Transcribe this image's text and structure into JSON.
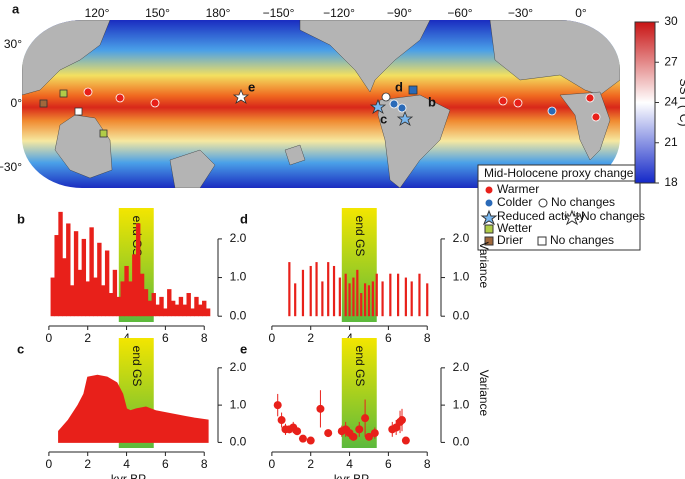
{
  "map": {
    "panel_label": "a",
    "lon_labels": [
      "120°",
      "150°",
      "180°",
      "−150°",
      "−120°",
      "−90°",
      "−60°",
      "−30°",
      "0°"
    ],
    "lat_labels": [
      "30°",
      "0°",
      "−30°"
    ],
    "site_labels": [
      "b",
      "c",
      "d",
      "e"
    ]
  },
  "legend": {
    "title": "Mid-Holocene proxy change",
    "items": [
      "Warmer",
      "Colder",
      "No changes",
      "Reduced activity",
      "No changes",
      "Wetter",
      "Drier",
      "No changes"
    ]
  },
  "chart_data": [
    {
      "type": "colorbar",
      "ylabel": "SST (°C)",
      "ylim": [
        18,
        30
      ],
      "yticks": [
        18,
        21,
        24,
        27,
        30
      ],
      "colors": [
        "#1428c8",
        "#ffffff",
        "#c81414"
      ]
    },
    {
      "type": "bar",
      "panel_label": "b",
      "color": "#e8201a",
      "x": [
        0.2,
        0.4,
        0.6,
        0.8,
        1.0,
        1.2,
        1.4,
        1.6,
        1.8,
        2.0,
        2.2,
        2.4,
        2.6,
        2.8,
        3.0,
        3.2,
        3.4,
        3.6,
        3.8,
        4.0,
        4.2,
        4.4,
        4.6,
        4.8,
        5.0,
        5.2,
        5.4,
        5.6,
        5.8,
        6.0,
        6.2,
        6.4,
        6.6,
        6.8,
        7.0,
        7.2,
        7.4,
        7.6,
        7.8,
        8.0,
        8.2
      ],
      "values": [
        1.0,
        2.1,
        2.7,
        1.5,
        2.4,
        0.8,
        2.2,
        1.2,
        2.0,
        0.9,
        2.3,
        1.0,
        1.9,
        0.8,
        1.7,
        0.6,
        1.2,
        0.5,
        0.9,
        1.3,
        0.9,
        1.6,
        2.4,
        1.1,
        0.7,
        0.4,
        0.6,
        0.3,
        0.5,
        0.2,
        0.7,
        0.4,
        0.3,
        0.5,
        0.3,
        0.6,
        0.2,
        0.5,
        0.3,
        0.4,
        0.2
      ],
      "shade": {
        "from": 3.6,
        "to": 5.4,
        "label": "end GS"
      },
      "xlim": [
        -0.2,
        8.4
      ],
      "xticks": [
        0,
        2,
        4,
        6,
        8
      ],
      "ylim": [
        -0.15,
        2.8
      ],
      "yticks": [
        {
          "value": 0,
          "label": "0.0"
        },
        {
          "value": 1,
          "label": "1.0"
        },
        {
          "value": 2,
          "label": "2.0"
        }
      ]
    },
    {
      "type": "area",
      "panel_label": "c",
      "color": "#e8201a",
      "xlabel": "kyr BP",
      "x": [
        0.5,
        1.0,
        1.5,
        1.8,
        2.0,
        2.5,
        3.0,
        3.5,
        3.8,
        4.0,
        4.2,
        4.5,
        5.0,
        5.5,
        6.0,
        6.5,
        7.0,
        7.5,
        8.2
      ],
      "values": [
        0.3,
        0.6,
        1.0,
        1.3,
        1.75,
        1.8,
        1.75,
        1.6,
        1.3,
        0.9,
        0.85,
        0.9,
        0.95,
        0.85,
        0.8,
        0.75,
        0.7,
        0.65,
        0.6
      ],
      "shade": {
        "from": 3.6,
        "to": 5.4,
        "label": "end GS"
      },
      "xlim": [
        -0.2,
        8.4
      ],
      "xticks": [
        0,
        2,
        4,
        6,
        8
      ],
      "ylim": [
        -0.15,
        2.8
      ],
      "yticks": [
        {
          "value": 0,
          "label": "0.0"
        },
        {
          "value": 1,
          "label": "1.0"
        },
        {
          "value": 2,
          "label": "2.0"
        }
      ]
    },
    {
      "type": "bar",
      "panel_label": "d",
      "color": "#e8201a",
      "ylabel": "Variance",
      "x": [
        0.9,
        1.2,
        1.6,
        2.0,
        2.3,
        2.6,
        2.9,
        3.2,
        3.5,
        3.8,
        4.0,
        4.2,
        4.4,
        4.6,
        4.8,
        5.0,
        5.2,
        5.4,
        5.7,
        6.1,
        6.5,
        6.9,
        7.2,
        7.6,
        8.0
      ],
      "values": [
        1.4,
        0.85,
        1.2,
        1.3,
        1.4,
        0.9,
        1.4,
        1.3,
        1.0,
        1.1,
        0.85,
        1.0,
        1.2,
        0.6,
        0.85,
        0.8,
        0.9,
        1.1,
        0.9,
        1.1,
        1.1,
        1.0,
        0.9,
        1.1,
        0.85
      ],
      "shade": {
        "from": 3.6,
        "to": 5.4,
        "label": "end GS"
      },
      "xlim": [
        -0.2,
        8.4
      ],
      "xticks": [
        0,
        2,
        4,
        6,
        8
      ],
      "ylim": [
        -0.15,
        2.8
      ],
      "yticks": [
        {
          "value": 0,
          "label": "0.0"
        },
        {
          "value": 1,
          "label": "1.0"
        },
        {
          "value": 2,
          "label": "2.0"
        }
      ]
    },
    {
      "type": "scatter",
      "panel_label": "e",
      "color": "#e8201a",
      "ylabel": "Variance",
      "xlabel": "kyr BP",
      "x": [
        0.3,
        0.5,
        0.7,
        0.9,
        1.1,
        1.3,
        1.6,
        2.0,
        2.5,
        2.9,
        3.6,
        3.8,
        4.0,
        4.2,
        4.5,
        4.8,
        5.0,
        5.3,
        6.2,
        6.4,
        6.6,
        6.7,
        6.9
      ],
      "values": [
        1.0,
        0.6,
        0.35,
        0.35,
        0.4,
        0.3,
        0.1,
        0.05,
        0.9,
        0.25,
        0.3,
        0.35,
        0.25,
        0.15,
        0.35,
        0.65,
        0.15,
        0.25,
        0.35,
        0.4,
        0.55,
        0.6,
        0.05
      ],
      "errors": [
        0.3,
        0.2,
        0.15,
        0.1,
        0.15,
        0.1,
        0.05,
        0.05,
        0.5,
        0.1,
        0.15,
        0.2,
        0.15,
        0.1,
        0.2,
        0.5,
        0.1,
        0.15,
        0.2,
        0.2,
        0.3,
        0.3,
        0.05
      ],
      "shade": {
        "from": 3.6,
        "to": 5.4,
        "label": "end GS"
      },
      "xlim": [
        -0.2,
        8.4
      ],
      "xticks": [
        0,
        2,
        4,
        6,
        8
      ],
      "ylim": [
        -0.15,
        2.8
      ],
      "yticks": [
        {
          "value": 0,
          "label": "0.0"
        },
        {
          "value": 1,
          "label": "1.0"
        },
        {
          "value": 2,
          "label": "2.0"
        }
      ]
    }
  ]
}
